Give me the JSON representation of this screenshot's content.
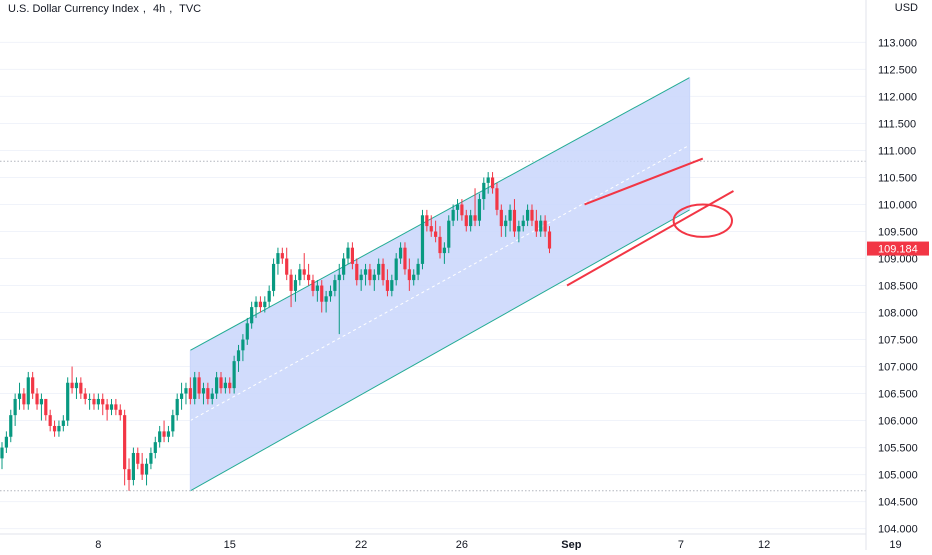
{
  "header": {
    "symbol_name": "U.S. Dollar Currency Index",
    "timeframe": "4h",
    "exchange": "TVC",
    "currency": "USD"
  },
  "price_badge": {
    "label": "109.184",
    "color": "#f23645"
  },
  "colors": {
    "up": "#089981",
    "down": "#f23645",
    "channel_fill": "#c9d6fb",
    "channel_line": "#22ab94",
    "drawing": "#f23645",
    "grid": "#f0f3fa",
    "axis_text": "#131722"
  },
  "chart_data": {
    "type": "candlestick",
    "y_axis": {
      "min": 103.9,
      "max": 113.6,
      "ticks": [
        "104.000",
        "104.500",
        "105.000",
        "105.500",
        "106.000",
        "106.500",
        "107.000",
        "107.500",
        "108.000",
        "108.500",
        "109.000",
        "109.500",
        "110.000",
        "110.500",
        "111.000",
        "111.500",
        "112.000",
        "112.500",
        "113.000"
      ]
    },
    "x_axis": {
      "labels": [
        {
          "text": "8",
          "bar": 22
        },
        {
          "text": "15",
          "bar": 52
        },
        {
          "text": "22",
          "bar": 82
        },
        {
          "text": "26",
          "bar": 105
        },
        {
          "text": "Sep",
          "bar": 130
        },
        {
          "text": "7",
          "bar": 155
        },
        {
          "text": "12",
          "bar": 174
        },
        {
          "text": "19",
          "bar": 204
        }
      ]
    },
    "last_price": 109.184,
    "horizontal_levels": [
      110.8,
      104.7
    ],
    "channel": {
      "upper": [
        {
          "bar": 43,
          "price": 107.3
        },
        {
          "bar": 157,
          "price": 112.35
        }
      ],
      "lower": [
        {
          "bar": 43,
          "price": 104.7
        },
        {
          "bar": 157,
          "price": 109.9
        }
      ],
      "midline": [
        {
          "bar": 43,
          "price": 106.0
        },
        {
          "bar": 157,
          "price": 111.1
        }
      ]
    },
    "drawings": {
      "upper_wedge_line": [
        {
          "bar": 133,
          "price": 110.0
        },
        {
          "bar": 160,
          "price": 110.85
        }
      ],
      "lower_wedge_line": [
        {
          "bar": 129,
          "price": 108.5
        },
        {
          "bar": 167,
          "price": 110.25
        }
      ],
      "ellipse": {
        "bar": 160,
        "price": 109.7,
        "rx_bars": 4.3,
        "ry_price": 0.3
      }
    },
    "candles": [
      [
        105.3,
        105.6,
        105.1,
        105.5
      ],
      [
        105.5,
        105.8,
        105.4,
        105.7
      ],
      [
        105.7,
        106.2,
        105.6,
        106.1
      ],
      [
        106.1,
        106.5,
        105.9,
        106.4
      ],
      [
        106.4,
        106.7,
        106.2,
        106.5
      ],
      [
        106.5,
        106.6,
        106.2,
        106.3
      ],
      [
        106.3,
        106.9,
        106.2,
        106.8
      ],
      [
        106.8,
        106.9,
        106.4,
        106.5
      ],
      [
        106.5,
        106.6,
        106.2,
        106.3
      ],
      [
        106.3,
        106.5,
        106.0,
        106.4
      ],
      [
        106.4,
        106.4,
        106.0,
        106.1
      ],
      [
        106.1,
        106.2,
        105.8,
        105.9
      ],
      [
        105.9,
        106.0,
        105.7,
        105.8
      ],
      [
        105.8,
        106.0,
        105.7,
        105.9
      ],
      [
        105.9,
        106.1,
        105.8,
        106.0
      ],
      [
        106.0,
        106.8,
        105.9,
        106.7
      ],
      [
        106.7,
        107.0,
        106.5,
        106.6
      ],
      [
        106.6,
        106.8,
        106.4,
        106.7
      ],
      [
        106.7,
        106.8,
        106.4,
        106.5
      ],
      [
        106.5,
        106.6,
        106.3,
        106.4
      ],
      [
        106.4,
        106.5,
        106.2,
        106.4
      ],
      [
        106.4,
        106.5,
        106.2,
        106.3
      ],
      [
        106.3,
        106.5,
        106.2,
        106.4
      ],
      [
        106.4,
        106.5,
        106.1,
        106.3
      ],
      [
        106.3,
        106.4,
        106.0,
        106.2
      ],
      [
        106.2,
        106.4,
        106.1,
        106.3
      ],
      [
        106.3,
        106.4,
        106.1,
        106.2
      ],
      [
        106.2,
        106.3,
        106.0,
        106.1
      ],
      [
        106.1,
        106.2,
        104.8,
        105.1
      ],
      [
        105.1,
        105.3,
        104.7,
        104.9
      ],
      [
        104.9,
        105.5,
        104.8,
        105.4
      ],
      [
        105.4,
        105.5,
        105.1,
        105.2
      ],
      [
        105.2,
        105.4,
        104.9,
        105.0
      ],
      [
        105.0,
        105.3,
        104.8,
        105.2
      ],
      [
        105.2,
        105.5,
        105.1,
        105.4
      ],
      [
        105.4,
        105.7,
        105.3,
        105.6
      ],
      [
        105.6,
        105.9,
        105.5,
        105.8
      ],
      [
        105.8,
        106.0,
        105.6,
        105.7
      ],
      [
        105.7,
        105.9,
        105.6,
        105.8
      ],
      [
        105.8,
        106.2,
        105.7,
        106.1
      ],
      [
        106.1,
        106.5,
        106.0,
        106.4
      ],
      [
        106.4,
        106.7,
        106.2,
        106.5
      ],
      [
        106.5,
        106.7,
        106.3,
        106.6
      ],
      [
        106.6,
        106.8,
        106.3,
        106.4
      ],
      [
        106.4,
        106.9,
        106.3,
        106.8
      ],
      [
        106.8,
        106.9,
        106.4,
        106.5
      ],
      [
        106.5,
        106.7,
        106.3,
        106.6
      ],
      [
        106.6,
        106.7,
        106.3,
        106.4
      ],
      [
        106.4,
        106.6,
        106.3,
        106.5
      ],
      [
        106.5,
        106.9,
        106.4,
        106.8
      ],
      [
        106.8,
        106.9,
        106.5,
        106.6
      ],
      [
        106.6,
        106.8,
        106.5,
        106.7
      ],
      [
        106.7,
        106.8,
        106.5,
        106.6
      ],
      [
        106.6,
        107.2,
        106.5,
        107.1
      ],
      [
        107.1,
        107.4,
        106.9,
        107.3
      ],
      [
        107.3,
        107.6,
        107.1,
        107.5
      ],
      [
        107.5,
        107.9,
        107.4,
        107.8
      ],
      [
        107.8,
        108.2,
        107.7,
        108.1
      ],
      [
        108.1,
        108.3,
        107.9,
        108.2
      ],
      [
        108.2,
        108.3,
        108.0,
        108.1
      ],
      [
        108.1,
        108.3,
        108.0,
        108.2
      ],
      [
        108.2,
        108.5,
        108.1,
        108.4
      ],
      [
        108.4,
        109.0,
        108.3,
        108.9
      ],
      [
        108.9,
        109.2,
        108.7,
        109.1
      ],
      [
        109.1,
        109.2,
        108.9,
        109.0
      ],
      [
        109.0,
        109.2,
        108.6,
        108.7
      ],
      [
        108.7,
        108.8,
        108.1,
        108.4
      ],
      [
        108.4,
        108.7,
        108.2,
        108.6
      ],
      [
        108.6,
        108.9,
        108.5,
        108.8
      ],
      [
        108.8,
        109.1,
        108.6,
        108.7
      ],
      [
        108.7,
        108.9,
        108.5,
        108.6
      ],
      [
        108.6,
        108.7,
        108.3,
        108.4
      ],
      [
        108.4,
        108.6,
        108.2,
        108.5
      ],
      [
        108.5,
        108.6,
        108.0,
        108.2
      ],
      [
        108.2,
        108.4,
        108.0,
        108.3
      ],
      [
        108.3,
        108.5,
        108.2,
        108.4
      ],
      [
        108.4,
        108.7,
        108.3,
        108.6
      ],
      [
        108.6,
        108.9,
        107.6,
        108.7
      ],
      [
        108.7,
        109.1,
        108.6,
        109.0
      ],
      [
        109.0,
        109.3,
        108.9,
        109.2
      ],
      [
        109.2,
        109.3,
        108.8,
        108.9
      ],
      [
        108.9,
        109.0,
        108.5,
        108.6
      ],
      [
        108.6,
        108.8,
        108.4,
        108.7
      ],
      [
        108.7,
        108.9,
        108.5,
        108.8
      ],
      [
        108.8,
        108.9,
        108.5,
        108.6
      ],
      [
        108.6,
        108.8,
        108.4,
        108.7
      ],
      [
        108.7,
        109.0,
        108.6,
        108.9
      ],
      [
        108.9,
        109.0,
        108.5,
        108.6
      ],
      [
        108.6,
        108.8,
        108.3,
        108.4
      ],
      [
        108.4,
        108.7,
        108.3,
        108.6
      ],
      [
        108.6,
        109.1,
        108.5,
        109.0
      ],
      [
        109.0,
        109.3,
        108.9,
        109.2
      ],
      [
        109.2,
        109.3,
        108.7,
        108.8
      ],
      [
        108.8,
        109.0,
        108.4,
        108.6
      ],
      [
        108.6,
        108.8,
        108.5,
        108.7
      ],
      [
        108.7,
        109.0,
        108.6,
        108.9
      ],
      [
        108.9,
        109.9,
        108.8,
        109.8
      ],
      [
        109.8,
        109.9,
        109.5,
        109.6
      ],
      [
        109.6,
        109.8,
        109.4,
        109.5
      ],
      [
        109.5,
        109.7,
        109.3,
        109.4
      ],
      [
        109.4,
        109.6,
        109.0,
        109.1
      ],
      [
        109.1,
        109.3,
        108.9,
        109.2
      ],
      [
        109.2,
        109.8,
        109.1,
        109.7
      ],
      [
        109.7,
        110.0,
        109.6,
        109.9
      ],
      [
        109.9,
        110.1,
        109.7,
        110.0
      ],
      [
        110.0,
        110.1,
        109.7,
        109.8
      ],
      [
        109.8,
        109.9,
        109.5,
        109.6
      ],
      [
        109.6,
        109.9,
        109.5,
        109.8
      ],
      [
        109.8,
        110.3,
        109.6,
        109.7
      ],
      [
        109.7,
        110.2,
        109.6,
        110.1
      ],
      [
        110.1,
        110.5,
        109.9,
        110.4
      ],
      [
        110.4,
        110.6,
        110.2,
        110.5
      ],
      [
        110.5,
        110.6,
        110.2,
        110.3
      ],
      [
        110.3,
        110.4,
        109.8,
        109.9
      ],
      [
        109.9,
        110.0,
        109.4,
        109.6
      ],
      [
        109.6,
        109.8,
        109.4,
        109.7
      ],
      [
        109.7,
        110.0,
        109.5,
        109.9
      ],
      [
        109.9,
        110.1,
        109.4,
        109.5
      ],
      [
        109.5,
        109.7,
        109.3,
        109.6
      ],
      [
        109.6,
        109.8,
        109.5,
        109.7
      ],
      [
        109.7,
        110.0,
        109.6,
        109.9
      ],
      [
        109.9,
        110.0,
        109.6,
        109.7
      ],
      [
        109.7,
        109.9,
        109.4,
        109.5
      ],
      [
        109.5,
        109.8,
        109.4,
        109.7
      ],
      [
        109.7,
        109.8,
        109.4,
        109.5
      ],
      [
        109.5,
        109.6,
        109.1,
        109.184
      ]
    ]
  }
}
